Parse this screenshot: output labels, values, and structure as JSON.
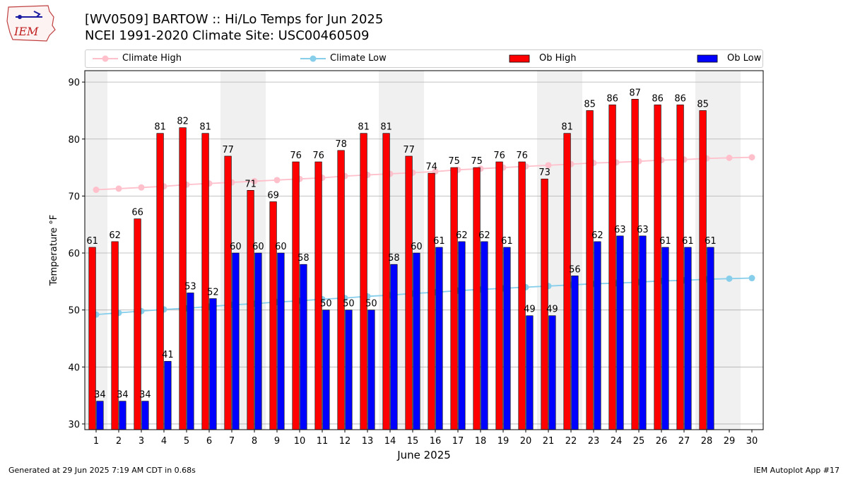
{
  "header": {
    "title_line1": "[WV0509] BARTOW :: Hi/Lo Temps for Jun 2025",
    "title_line2": "NCEI 1991-2020 Climate Site: USC00460509",
    "logo_text": "IEM"
  },
  "footer": {
    "left": "Generated at 29 Jun 2025 7:19 AM CDT in 0.68s",
    "right": "IEM Autoplot App #17"
  },
  "colors": {
    "ob_high": "#ff0000",
    "ob_low": "#0000ff",
    "climate_high": "#ffc0cb",
    "climate_low": "#87ceeb",
    "weekend_band": "#f0f0f0",
    "grid": "#b0b0b0"
  },
  "chart_data": {
    "type": "bar",
    "xlabel": "June 2025",
    "ylabel": "Temperature °F",
    "ylim": [
      29,
      92
    ],
    "yticks": [
      30,
      40,
      50,
      60,
      70,
      80,
      90
    ],
    "grid": "horizontal",
    "legend_placement": "top",
    "days": [
      1,
      2,
      3,
      4,
      5,
      6,
      7,
      8,
      9,
      10,
      11,
      12,
      13,
      14,
      15,
      16,
      17,
      18,
      19,
      20,
      21,
      22,
      23,
      24,
      25,
      26,
      27,
      28,
      29,
      30
    ],
    "weekend_days": [
      1,
      7,
      8,
      14,
      15,
      21,
      22,
      28,
      29
    ],
    "series": [
      {
        "name": "Climate High",
        "kind": "line",
        "values": [
          71.1,
          71.3,
          71.5,
          71.7,
          72.0,
          72.2,
          72.4,
          72.6,
          72.8,
          73.0,
          73.2,
          73.5,
          73.7,
          73.9,
          74.1,
          74.3,
          74.6,
          74.8,
          75.0,
          75.2,
          75.4,
          75.6,
          75.8,
          75.9,
          76.1,
          76.3,
          76.4,
          76.6,
          76.7,
          76.8
        ]
      },
      {
        "name": "Climate Low",
        "kind": "line",
        "values": [
          49.2,
          49.5,
          49.8,
          50.1,
          50.3,
          50.6,
          50.9,
          51.1,
          51.4,
          51.6,
          51.9,
          52.1,
          52.4,
          52.6,
          52.9,
          53.1,
          53.4,
          53.6,
          53.8,
          54.0,
          54.2,
          54.4,
          54.6,
          54.7,
          54.9,
          55.1,
          55.2,
          55.4,
          55.5,
          55.6
        ]
      },
      {
        "name": "Ob High",
        "kind": "bar",
        "values": [
          61,
          62,
          66,
          81,
          82,
          81,
          77,
          71,
          69,
          76,
          76,
          78,
          81,
          81,
          77,
          74,
          75,
          75,
          76,
          76,
          73,
          81,
          85,
          86,
          87,
          86,
          86,
          85,
          null,
          null
        ]
      },
      {
        "name": "Ob Low",
        "kind": "bar",
        "values": [
          34,
          34,
          34,
          41,
          53,
          52,
          60,
          60,
          60,
          58,
          50,
          50,
          50,
          58,
          60,
          61,
          62,
          62,
          61,
          49,
          49,
          56,
          62,
          63,
          63,
          61,
          61,
          61,
          null,
          null
        ]
      }
    ]
  }
}
